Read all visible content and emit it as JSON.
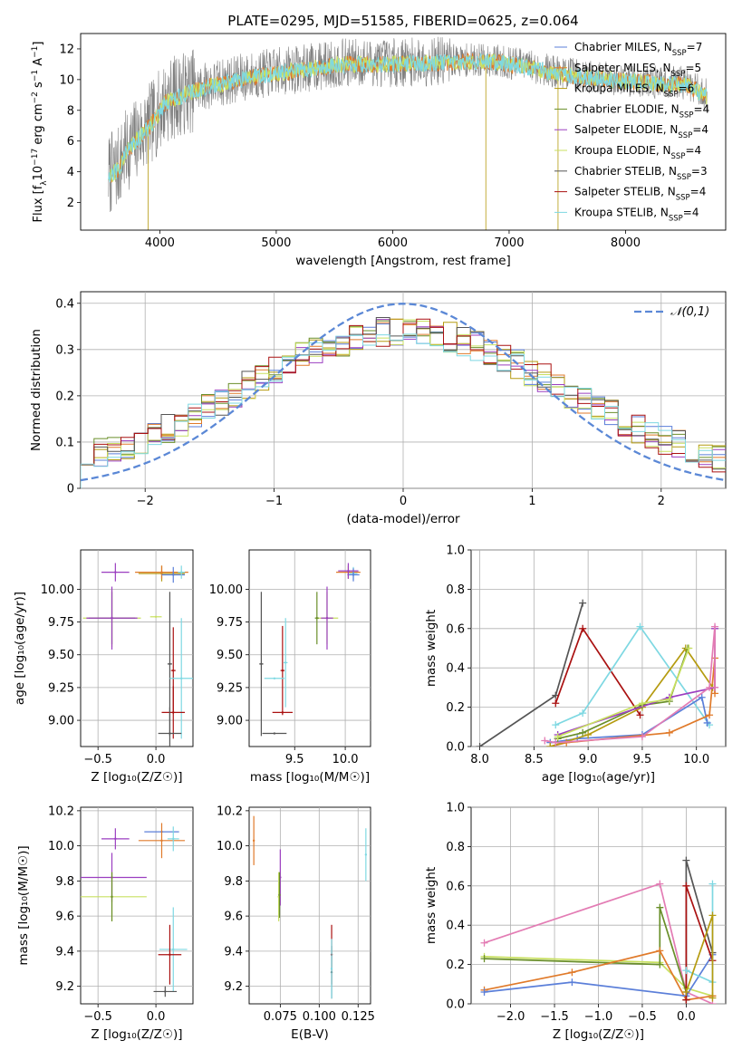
{
  "figure": {
    "title": "PLATE=0295, MJD=51585, FIBERID=0625, z=0.064"
  },
  "colors": {
    "Chabrier MILES": "#5b7fd9",
    "Salpeter MILES": "#e07a2a",
    "Kroupa MILES": "#b59b10",
    "Chabrier ELODIE": "#6a8f2a",
    "Salpeter ELODIE": "#9b3ec0",
    "Kroupa ELODIE": "#c8e060",
    "Chabrier STELIB": "#555555",
    "Salpeter STELIB": "#aa1111",
    "Kroupa STELIB": "#7ed8e2",
    "data": "#808080"
  },
  "chart_data": [
    {
      "id": "spectrum",
      "type": "line",
      "title": "PLATE=0295, MJD=51585, FIBERID=0625, z=0.064",
      "xlabel": "wavelength [Angstrom, rest frame]",
      "ylabel_parts": [
        "Flux [f",
        "λ",
        "10",
        "−17",
        " erg cm",
        "−2",
        " s",
        "−1",
        " A",
        "−1",
        "]"
      ],
      "xlim": [
        3320,
        8860
      ],
      "ylim": [
        0.2,
        13
      ],
      "xticks": [
        4000,
        5000,
        6000,
        7000,
        8000
      ],
      "yticks": [
        2,
        4,
        6,
        8,
        10,
        12
      ],
      "grid": false,
      "legend_position": "right",
      "legend": [
        {
          "name": "Chabrier MILES",
          "nssp": "7"
        },
        {
          "name": "Salpeter MILES",
          "nssp": "5"
        },
        {
          "name": "Kroupa MILES",
          "nssp": "6"
        },
        {
          "name": "Chabrier ELODIE",
          "nssp": "4"
        },
        {
          "name": "Salpeter ELODIE",
          "nssp": "4"
        },
        {
          "name": "Kroupa ELODIE",
          "nssp": "4"
        },
        {
          "name": "Chabrier STELIB",
          "nssp": "3"
        },
        {
          "name": "Salpeter STELIB",
          "nssp": "4"
        },
        {
          "name": "Kroupa STELIB",
          "nssp": "4"
        }
      ],
      "continuum_knots": [
        [
          3560,
          3.8
        ],
        [
          3640,
          4.2
        ],
        [
          3700,
          5.2
        ],
        [
          3780,
          6.0
        ],
        [
          3860,
          6.6
        ],
        [
          3950,
          7.4
        ],
        [
          4050,
          8.6
        ],
        [
          4200,
          9.1
        ],
        [
          4400,
          9.6
        ],
        [
          4700,
          10.1
        ],
        [
          5000,
          10.5
        ],
        [
          5300,
          10.8
        ],
        [
          5600,
          11.1
        ],
        [
          6000,
          11.1
        ],
        [
          6400,
          11.2
        ],
        [
          6800,
          11.3
        ],
        [
          7100,
          11.0
        ],
        [
          7400,
          10.5
        ],
        [
          7700,
          10.2
        ],
        [
          8000,
          10.0
        ],
        [
          8300,
          9.8
        ],
        [
          8520,
          9.8
        ],
        [
          8620,
          9.3
        ],
        [
          8700,
          9.0
        ]
      ]
    },
    {
      "id": "residuals",
      "type": "histogram",
      "xlabel": "(data-model)/error",
      "ylabel": "Normed distribution",
      "xlim": [
        -2.5,
        2.5
      ],
      "ylim": [
        0,
        0.425
      ],
      "xticks": [
        -2,
        -1,
        0,
        1,
        2
      ],
      "yticks": [
        0.0,
        0.1,
        0.2,
        0.3,
        0.4
      ],
      "grid": true,
      "legend_position": "top-right",
      "normal_curve_label": "𝒩(0,1)",
      "bins": 48,
      "series": [
        {
          "name": "Chabrier MILES",
          "seed": 11
        },
        {
          "name": "Salpeter MILES",
          "seed": 23
        },
        {
          "name": "Kroupa MILES",
          "seed": 37
        },
        {
          "name": "Chabrier ELODIE",
          "seed": 41
        },
        {
          "name": "Salpeter ELODIE",
          "seed": 53
        },
        {
          "name": "Kroupa ELODIE",
          "seed": 67
        },
        {
          "name": "Chabrier STELIB",
          "seed": 71
        },
        {
          "name": "Salpeter STELIB",
          "seed": 83
        },
        {
          "name": "Kroupa STELIB",
          "seed": 97
        }
      ]
    },
    {
      "id": "age-vs-Z",
      "type": "errorbar",
      "xlabel": "Z [log₁₀(Z/Z☉)]",
      "ylabel": "age  [log₁₀(age/yr)]",
      "xlim": [
        -0.65,
        0.32
      ],
      "ylim": [
        8.8,
        10.3
      ],
      "xticks": [
        -0.5,
        0.0
      ],
      "xtick_labels": [
        "−0.5",
        "0.0"
      ],
      "yticks": [
        9.0,
        9.25,
        9.5,
        9.75,
        10.0
      ],
      "ytick_labels": [
        "9.00",
        "9.25",
        "9.50",
        "9.75",
        "10.00"
      ],
      "grid": true,
      "points": [
        {
          "series": "Kroupa MILES",
          "x": 0.05,
          "y": 10.12,
          "xerr": 0.2,
          "yerr": 0.06
        },
        {
          "series": "Salpeter MILES",
          "x": 0.05,
          "y": 10.13,
          "xerr": 0.23,
          "yerr": 0.05
        },
        {
          "series": "Chabrier MILES",
          "x": 0.15,
          "y": 10.11,
          "xerr": 0.1,
          "yerr": 0.06
        },
        {
          "series": "Kroupa STELIB",
          "x": 0.22,
          "y": 10.13,
          "xerr": 0.03,
          "yerr": 0.05
        },
        {
          "series": "Salpeter ELODIE",
          "x": -0.35,
          "y": 10.13,
          "xerr": 0.12,
          "yerr": 0.07
        },
        {
          "series": "Kroupa ELODIE",
          "x": -0.38,
          "y": 9.78,
          "xerr": 0.25,
          "yerr": 0.22
        },
        {
          "series": "Chabrier ELODIE",
          "x": -0.38,
          "y": 9.78,
          "xerr": 0.2,
          "yerr": 0.2
        },
        {
          "series": "Salpeter ELODIE",
          "x": -0.38,
          "y": 9.78,
          "xerr": 0.22,
          "yerr": 0.24
        },
        {
          "series": "Kroupa ELODIE",
          "x": 0.0,
          "y": 9.79,
          "xerr": 0.05,
          "yerr": 0.0
        },
        {
          "series": "Chabrier STELIB",
          "x": 0.12,
          "y": 9.43,
          "xerr": 0.02,
          "yerr": 0.55
        },
        {
          "series": "Salpeter STELIB",
          "x": 0.15,
          "y": 9.38,
          "xerr": 0.02,
          "yerr": 0.33
        },
        {
          "series": "Kroupa STELIB",
          "x": 0.22,
          "y": 9.32,
          "xerr": 0.1,
          "yerr": 0.46
        },
        {
          "series": "Salpeter STELIB",
          "x": 0.15,
          "y": 9.06,
          "xerr": 0.1,
          "yerr": 0.2
        },
        {
          "series": "Chabrier STELIB",
          "x": 0.12,
          "y": 8.9,
          "xerr": 0.1,
          "yerr": 0.2
        }
      ]
    },
    {
      "id": "age-vs-mass",
      "type": "errorbar",
      "xlabel": "mass [log₁₀(M/M☉)]",
      "ylabel": "",
      "xlim": [
        9.05,
        10.25
      ],
      "ylim": [
        8.8,
        10.3
      ],
      "xticks": [
        9.5,
        10.0
      ],
      "xtick_labels": [
        "9.5",
        "10.0"
      ],
      "yticks": [
        9.0,
        9.25,
        9.5,
        9.75,
        10.0
      ],
      "ytick_labels": [
        "9.00",
        "9.25",
        "9.50",
        "9.75",
        "10.00"
      ],
      "grid": true,
      "points": [
        {
          "series": "Salpeter MILES",
          "x": 10.03,
          "y": 10.13,
          "xerr": 0.12,
          "yerr": 0.05
        },
        {
          "series": "Kroupa STELIB",
          "x": 10.08,
          "y": 10.12,
          "xerr": 0.04,
          "yerr": 0.05
        },
        {
          "series": "Chabrier MILES",
          "x": 10.08,
          "y": 10.11,
          "xerr": 0.06,
          "yerr": 0.05
        },
        {
          "series": "Salpeter ELODIE",
          "x": 10.03,
          "y": 10.14,
          "xerr": 0.1,
          "yerr": 0.06
        },
        {
          "series": "Kroupa ELODIE",
          "x": 9.82,
          "y": 9.78,
          "xerr": 0.11,
          "yerr": 0.2
        },
        {
          "series": "Salpeter ELODIE",
          "x": 9.82,
          "y": 9.78,
          "xerr": 0.06,
          "yerr": 0.24
        },
        {
          "series": "Chabrier ELODIE",
          "x": 9.72,
          "y": 9.78,
          "xerr": 0.02,
          "yerr": 0.2
        },
        {
          "series": "Chabrier STELIB",
          "x": 9.17,
          "y": 9.43,
          "xerr": 0.02,
          "yerr": 0.55
        },
        {
          "series": "Salpeter STELIB",
          "x": 9.38,
          "y": 9.38,
          "xerr": 0.02,
          "yerr": 0.34
        },
        {
          "series": "Kroupa STELIB",
          "x": 9.41,
          "y": 9.44,
          "xerr": 0.02,
          "yerr": 0.34
        },
        {
          "series": "Kroupa STELIB",
          "x": 9.3,
          "y": 9.32,
          "xerr": 0.1,
          "yerr": 0.0
        },
        {
          "series": "Salpeter STELIB",
          "x": 9.38,
          "y": 9.06,
          "xerr": 0.1,
          "yerr": 0.0
        },
        {
          "series": "Chabrier STELIB",
          "x": 9.3,
          "y": 8.9,
          "xerr": 0.12,
          "yerr": 0.0
        }
      ]
    },
    {
      "id": "mass-weight-vs-age",
      "type": "line",
      "xlabel": "age  [log₁₀(age/yr)]",
      "ylabel": "mass weight",
      "xlim": [
        7.92,
        10.27
      ],
      "ylim": [
        0,
        1.0
      ],
      "xticks": [
        8.0,
        8.5,
        9.0,
        9.5,
        10.0
      ],
      "xtick_labels": [
        "8.0",
        "8.5",
        "9.0",
        "9.5",
        "10.0"
      ],
      "yticks": [
        0.0,
        0.2,
        0.4,
        0.6,
        0.8,
        1.0
      ],
      "ytick_labels": [
        "0.0",
        "0.2",
        "0.4",
        "0.6",
        "0.8",
        "1.0"
      ],
      "grid": true,
      "series": [
        {
          "name": "Chabrier STELIB",
          "x": [
            8.0,
            8.7,
            8.95
          ],
          "y": [
            0.0,
            0.26,
            0.73
          ]
        },
        {
          "name": "Salpeter STELIB",
          "x": [
            8.7,
            8.95,
            9.48
          ],
          "y": [
            0.22,
            0.6,
            0.16
          ]
        },
        {
          "name": "Kroupa STELIB",
          "x": [
            8.7,
            8.95,
            9.48,
            10.12
          ],
          "y": [
            0.11,
            0.17,
            0.61,
            0.11
          ]
        },
        {
          "name": "Chabrier MILES",
          "x": [
            8.65,
            8.9,
            9.5,
            10.05,
            10.1
          ],
          "y": [
            0.02,
            0.04,
            0.06,
            0.25,
            0.12
          ]
        },
        {
          "name": "Salpeter MILES",
          "x": [
            8.65,
            8.8,
            9.75,
            10.12,
            10.17,
            10.17
          ],
          "y": [
            0.0,
            0.02,
            0.07,
            0.16,
            0.45,
            0.27
          ]
        },
        {
          "name": "Kroupa MILES",
          "x": [
            8.65,
            9.0,
            9.5,
            9.9,
            10.15
          ],
          "y": [
            0.0,
            0.06,
            0.2,
            0.5,
            0.3
          ]
        },
        {
          "name": "Chabrier ELODIE",
          "x": [
            8.72,
            8.95,
            9.5,
            9.75,
            9.92
          ],
          "y": [
            0.04,
            0.07,
            0.21,
            0.23,
            0.5
          ]
        },
        {
          "name": "Salpeter ELODIE",
          "x": [
            8.72,
            9.75,
            10.17,
            10.17
          ],
          "y": [
            0.06,
            0.25,
            0.3,
            0.6
          ]
        },
        {
          "name": "Kroupa ELODIE",
          "x": [
            8.72,
            9.5,
            9.75,
            9.93
          ],
          "y": [
            0.05,
            0.22,
            0.24,
            0.5
          ]
        },
        {
          "name": "Kroupa STELIB pink",
          "color": "#e37cb4",
          "x": [
            8.6,
            8.7,
            9.5,
            10.12,
            10.17,
            10.17
          ],
          "y": [
            0.03,
            0.02,
            0.05,
            0.3,
            0.61,
            0.3
          ]
        }
      ]
    },
    {
      "id": "mass-vs-Z",
      "type": "errorbar",
      "xlabel": "Z [log₁₀(Z/Z☉)]",
      "ylabel": "mass [log₁₀(M/M☉)]",
      "xlim": [
        -0.65,
        0.32
      ],
      "ylim": [
        9.1,
        10.22
      ],
      "xticks": [
        -0.5,
        0.0
      ],
      "xtick_labels": [
        "−0.5",
        "0.0"
      ],
      "yticks": [
        9.2,
        9.4,
        9.6,
        9.8,
        10.0,
        10.2
      ],
      "ytick_labels": [
        "9.2",
        "9.4",
        "9.6",
        "9.8",
        "10.0",
        "10.2"
      ],
      "grid": true,
      "points": [
        {
          "series": "Chabrier MILES",
          "x": 0.05,
          "y": 10.08,
          "xerr": 0.15,
          "yerr": 0.0
        },
        {
          "series": "Salpeter MILES",
          "x": 0.05,
          "y": 10.03,
          "xerr": 0.2,
          "yerr": 0.1
        },
        {
          "series": "Kroupa STELIB",
          "x": 0.15,
          "y": 10.04,
          "xerr": 0.05,
          "yerr": 0.07
        },
        {
          "series": "Salpeter ELODIE",
          "x": -0.35,
          "y": 10.04,
          "xerr": 0.12,
          "yerr": 0.06
        },
        {
          "series": "Salpeter ELODIE",
          "x": -0.38,
          "y": 9.82,
          "xerr": 0.3,
          "yerr": 0.14
        },
        {
          "series": "Kroupa ELODIE",
          "x": -0.38,
          "y": 9.71,
          "xerr": 0.3,
          "yerr": 0.14
        },
        {
          "series": "Chabrier ELODIE",
          "x": -0.38,
          "y": 9.71,
          "xerr": 0.0,
          "yerr": 0.14
        },
        {
          "series": "Kroupa STELIB",
          "x": 0.15,
          "y": 9.41,
          "xerr": 0.12,
          "yerr": 0.24
        },
        {
          "series": "Salpeter STELIB",
          "x": 0.12,
          "y": 9.38,
          "xerr": 0.1,
          "yerr": 0.17
        },
        {
          "series": "Chabrier STELIB",
          "x": 0.08,
          "y": 9.17,
          "xerr": 0.1,
          "yerr": 0.03
        }
      ]
    },
    {
      "id": "mass-vs-EBV",
      "type": "errorbar",
      "xlabel": "E(B-V)",
      "ylabel": "",
      "xlim": [
        0.055,
        0.133
      ],
      "ylim": [
        9.1,
        10.22
      ],
      "xticks": [
        0.075,
        0.1,
        0.125
      ],
      "xtick_labels": [
        "0.075",
        "0.100",
        "0.125"
      ],
      "yticks": [
        9.2,
        9.4,
        9.6,
        9.8,
        10.0,
        10.2
      ],
      "ytick_labels": [
        "9.2",
        "9.4",
        "9.6",
        "9.8",
        "10.0",
        "10.2"
      ],
      "grid": true,
      "points": [
        {
          "series": "Salpeter MILES",
          "x": 0.058,
          "y": 10.03,
          "xerr": 0.0,
          "yerr": 0.14
        },
        {
          "series": "Salpeter ELODIE",
          "x": 0.075,
          "y": 9.82,
          "xerr": 0.0,
          "yerr": 0.16
        },
        {
          "series": "Kroupa ELODIE",
          "x": 0.074,
          "y": 9.71,
          "xerr": 0.0,
          "yerr": 0.14
        },
        {
          "series": "Chabrier ELODIE",
          "x": 0.0745,
          "y": 9.72,
          "xerr": 0.0,
          "yerr": 0.13
        },
        {
          "series": "Kroupa STELIB",
          "x": 0.13,
          "y": 9.95,
          "xerr": 0.0,
          "yerr": 0.15
        },
        {
          "series": "Salpeter STELIB",
          "x": 0.108,
          "y": 9.38,
          "xerr": 0.0,
          "yerr": 0.17
        },
        {
          "series": "Chabrier STELIB",
          "x": 0.108,
          "y": 9.28,
          "xerr": 0.0,
          "yerr": 0.15
        },
        {
          "series": "Kroupa STELIB",
          "x": 0.108,
          "y": 9.3,
          "xerr": 0.0,
          "yerr": 0.17
        }
      ]
    },
    {
      "id": "mass-weight-vs-Z",
      "type": "line",
      "xlabel": "Z [log₁₀(Z/Z☉)]",
      "ylabel": "mass weight",
      "xlim": [
        -2.45,
        0.45
      ],
      "ylim": [
        0,
        1.0
      ],
      "xticks": [
        -2.0,
        -1.5,
        -1.0,
        -0.5,
        0.0
      ],
      "xtick_labels": [
        "−2.0",
        "−1.5",
        "−1.0",
        "−0.5",
        "0.0"
      ],
      "yticks": [
        0.0,
        0.2,
        0.4,
        0.6,
        0.8,
        1.0
      ],
      "ytick_labels": [
        "0.0",
        "0.2",
        "0.4",
        "0.6",
        "0.8",
        "1.0"
      ],
      "grid": true,
      "series": [
        {
          "name": "Salpeter ELODIE",
          "color": "#e37cb4",
          "x": [
            -2.3,
            -0.3,
            0.0,
            0.3
          ],
          "y": [
            0.31,
            0.61,
            0.06,
            0.0
          ]
        },
        {
          "name": "Kroupa ELODIE",
          "x": [
            -2.3,
            -0.3,
            0.0,
            0.3
          ],
          "y": [
            0.24,
            0.21,
            0.08,
            0.04
          ]
        },
        {
          "name": "Chabrier ELODIE",
          "x": [
            -2.3,
            -0.3,
            -0.3,
            0.0
          ],
          "y": [
            0.23,
            0.2,
            0.49,
            0.06
          ]
        },
        {
          "name": "Salpeter MILES",
          "x": [
            -2.3,
            -1.3,
            -0.3,
            0.0,
            0.3
          ],
          "y": [
            0.07,
            0.16,
            0.27,
            0.02,
            0.04
          ]
        },
        {
          "name": "Chabrier MILES",
          "x": [
            -2.3,
            -1.3,
            0.0,
            0.3
          ],
          "y": [
            0.06,
            0.11,
            0.04,
            0.25
          ]
        },
        {
          "name": "Chabrier STELIB",
          "x": [
            0.0,
            0.0,
            0.3
          ],
          "y": [
            0.02,
            0.73,
            0.26
          ]
        },
        {
          "name": "Salpeter STELIB",
          "x": [
            0.0,
            0.0,
            0.3
          ],
          "y": [
            0.02,
            0.6,
            0.22
          ]
        },
        {
          "name": "Kroupa STELIB",
          "x": [
            0.0,
            0.3,
            0.3
          ],
          "y": [
            0.17,
            0.11,
            0.61
          ]
        },
        {
          "name": "Kroupa MILES",
          "x": [
            0.0,
            0.3,
            0.3
          ],
          "y": [
            0.06,
            0.45,
            0.03
          ]
        }
      ]
    }
  ]
}
